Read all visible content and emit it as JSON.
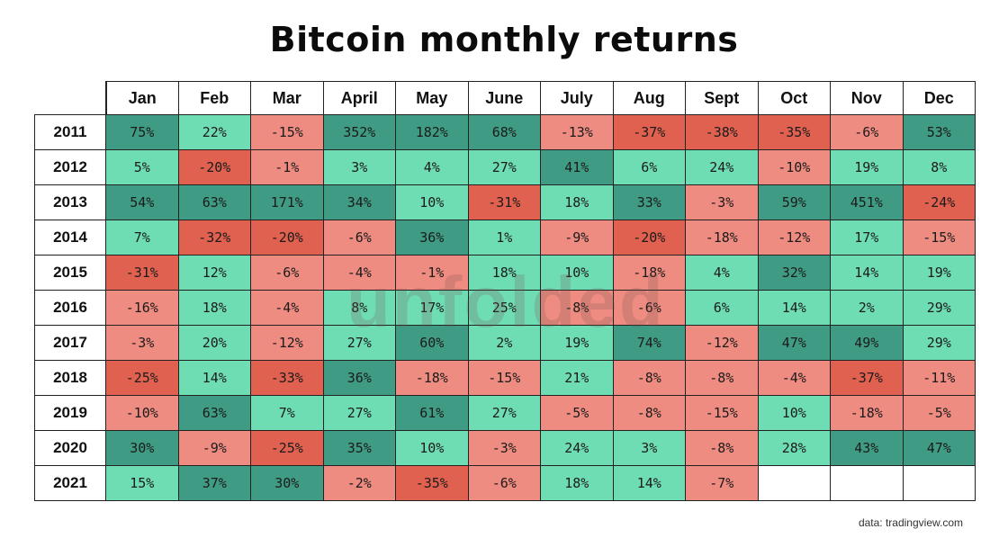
{
  "colors": {
    "strong_green": "#3f9b83",
    "light_green": "#6fddb4",
    "light_red": "#ef8c81",
    "strong_red": "#e0614f",
    "empty": "#ffffff"
  },
  "chart_data": {
    "type": "heatmap",
    "title": "Bitcoin monthly returns",
    "columns": [
      "Jan",
      "Feb",
      "Mar",
      "April",
      "May",
      "June",
      "July",
      "Aug",
      "Sept",
      "Oct",
      "Nov",
      "Dec"
    ],
    "rows": [
      {
        "year": "2011",
        "values": [
          "75%",
          "22%",
          "-15%",
          "352%",
          "182%",
          "68%",
          "-13%",
          "-37%",
          "-38%",
          "-35%",
          "-6%",
          "53%"
        ]
      },
      {
        "year": "2012",
        "values": [
          "5%",
          "-20%",
          "-1%",
          "3%",
          "4%",
          "27%",
          "41%",
          "6%",
          "24%",
          "-10%",
          "19%",
          "8%"
        ]
      },
      {
        "year": "2013",
        "values": [
          "54%",
          "63%",
          "171%",
          "34%",
          "10%",
          "-31%",
          "18%",
          "33%",
          "-3%",
          "59%",
          "451%",
          "-24%"
        ]
      },
      {
        "year": "2014",
        "values": [
          "7%",
          "-32%",
          "-20%",
          "-6%",
          "36%",
          "1%",
          "-9%",
          "-20%",
          "-18%",
          "-12%",
          "17%",
          "-15%"
        ]
      },
      {
        "year": "2015",
        "values": [
          "-31%",
          "12%",
          "-6%",
          "-4%",
          "-1%",
          "18%",
          "10%",
          "-18%",
          "4%",
          "32%",
          "14%",
          "19%"
        ]
      },
      {
        "year": "2016",
        "values": [
          "-16%",
          "18%",
          "-4%",
          "8%",
          "17%",
          "25%",
          "-8%",
          "-6%",
          "6%",
          "14%",
          "2%",
          "29%"
        ]
      },
      {
        "year": "2017",
        "values": [
          "-3%",
          "20%",
          "-12%",
          "27%",
          "60%",
          "2%",
          "19%",
          "74%",
          "-12%",
          "47%",
          "49%",
          "29%"
        ]
      },
      {
        "year": "2018",
        "values": [
          "-25%",
          "14%",
          "-33%",
          "36%",
          "-18%",
          "-15%",
          "21%",
          "-8%",
          "-8%",
          "-4%",
          "-37%",
          "-11%"
        ]
      },
      {
        "year": "2019",
        "values": [
          "-10%",
          "63%",
          "7%",
          "27%",
          "61%",
          "27%",
          "-5%",
          "-8%",
          "-15%",
          "10%",
          "-18%",
          "-5%"
        ]
      },
      {
        "year": "2020",
        "values": [
          "30%",
          "-9%",
          "-25%",
          "35%",
          "10%",
          "-3%",
          "24%",
          "3%",
          "-8%",
          "28%",
          "43%",
          "47%"
        ]
      },
      {
        "year": "2021",
        "values": [
          "15%",
          "37%",
          "30%",
          "-2%",
          "-35%",
          "-6%",
          "18%",
          "14%",
          "-7%",
          "",
          "",
          ""
        ]
      }
    ]
  },
  "watermark": "unfolded",
  "source": "data: tradingview.com"
}
